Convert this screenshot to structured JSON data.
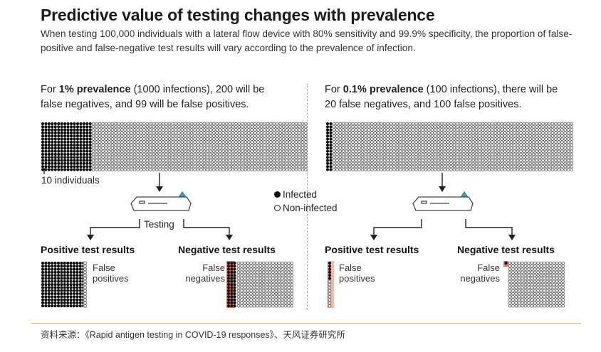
{
  "title": "Predictive value of testing changes with prevalence",
  "subtitle": "When testing 100,000 individuals with a lateral flow device with 80% sensitivity and 99.9% specificity, the proportion of false-positive and false-negative test results will vary according to the prevalence of infection.",
  "left": {
    "caption_pre": "For ",
    "caption_bold": "1% prevalence",
    "caption_post": " (1000 infections), 200 will be false negatives, and 99 will be false positives.",
    "grid_note": "10 individuals",
    "positive_header": "Positive test results",
    "negative_header": "Negative test results",
    "false_positives": "False positives",
    "false_negatives": "False negatives"
  },
  "right": {
    "caption_pre": "For ",
    "caption_bold": "0.1% prevalence",
    "caption_post": " (100 infections), there will be 20 false negatives, and 100 false positives.",
    "positive_header": "Positive test results",
    "negative_header": "Negative test results",
    "false_positives": "False positives",
    "false_negatives": "False negatives"
  },
  "legend": {
    "infected": "Infected",
    "non_infected": "Non-infected"
  },
  "testing_label": "Testing",
  "source": "资料来源：《Rapid antigen testing in COVID-19 responses》、天风证券研究所",
  "colors": {
    "infected": "#111111",
    "false_mark": "#e07a63",
    "divider": "#c8b27c",
    "outline": "#555555"
  }
}
